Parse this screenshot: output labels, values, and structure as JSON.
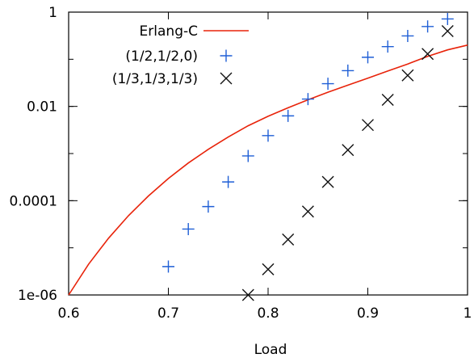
{
  "chart_data": {
    "type": "scatter",
    "xlabel": "Load",
    "ylabel": "",
    "xlim": [
      0.6,
      1.0
    ],
    "ylim": [
      1e-06,
      1
    ],
    "yscale": "log",
    "grid": false,
    "legend_position": "top-left",
    "x_ticks": [
      {
        "value": 0.6,
        "label": "0.6"
      },
      {
        "value": 0.7,
        "label": "0.7"
      },
      {
        "value": 0.8,
        "label": "0.8"
      },
      {
        "value": 0.9,
        "label": "0.9"
      },
      {
        "value": 1.0,
        "label": "1"
      }
    ],
    "y_ticks": [
      {
        "value": 1e-06,
        "label": "1e-06"
      },
      {
        "value": 0.0001,
        "label": "0.0001"
      },
      {
        "value": 0.01,
        "label": "0.01"
      },
      {
        "value": 1,
        "label": "1"
      }
    ],
    "series": [
      {
        "name": "Erlang-C",
        "kind": "line",
        "color": "#e8230a",
        "x": [
          0.6,
          0.62,
          0.64,
          0.66,
          0.68,
          0.7,
          0.72,
          0.74,
          0.76,
          0.78,
          0.8,
          0.82,
          0.84,
          0.86,
          0.88,
          0.9,
          0.92,
          0.94,
          0.96,
          0.98,
          1.0
        ],
        "y": [
          1e-06,
          4.5e-06,
          1.6e-05,
          4.8e-05,
          0.000126,
          0.000295,
          0.000631,
          0.00123,
          0.00224,
          0.00389,
          0.00617,
          0.00933,
          0.0138,
          0.02,
          0.0282,
          0.0398,
          0.0562,
          0.0794,
          0.115,
          0.158,
          0.2
        ]
      },
      {
        "name": "(1/2,1/2,0)",
        "kind": "marker",
        "marker": "plus",
        "color": "#1f5fd6",
        "x": [
          0.7,
          0.72,
          0.74,
          0.76,
          0.78,
          0.8,
          0.82,
          0.84,
          0.86,
          0.88,
          0.9,
          0.92,
          0.94,
          0.96,
          0.98
        ],
        "y": [
          4e-06,
          2.5e-05,
          7.5e-05,
          0.00025,
          0.00089,
          0.0024,
          0.0063,
          0.0143,
          0.0303,
          0.0574,
          0.1102,
          0.1856,
          0.3126,
          0.4954,
          0.7154
        ]
      },
      {
        "name": "(1/3,1/3,1/3)",
        "kind": "marker",
        "marker": "cross",
        "color": "#111111",
        "x": [
          0.78,
          0.8,
          0.82,
          0.84,
          0.86,
          0.88,
          0.9,
          0.92,
          0.94,
          0.96,
          0.98
        ],
        "y": [
          1e-06,
          3.5e-06,
          1.5e-05,
          5.9e-05,
          0.00025,
          0.00119,
          0.00403,
          0.0138,
          0.0455,
          0.1299,
          0.3962
        ]
      }
    ]
  }
}
